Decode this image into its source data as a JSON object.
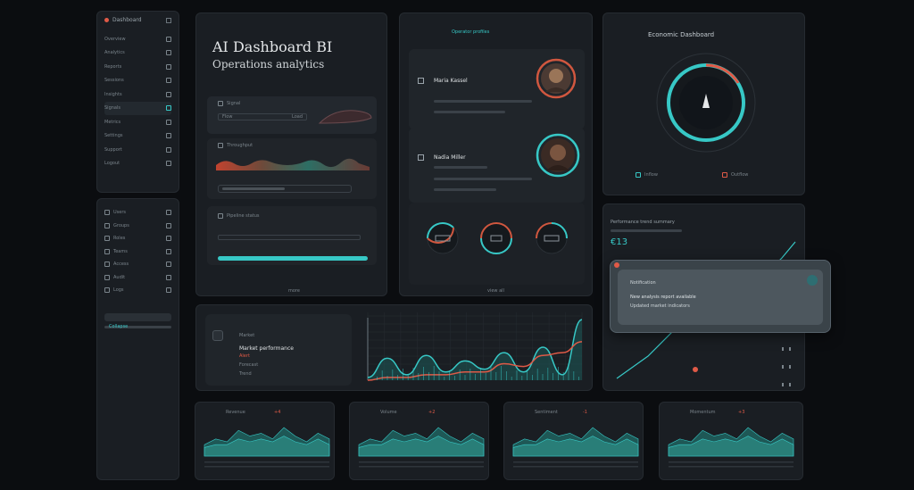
{
  "colors": {
    "bg": "#0b0d10",
    "panel": "#1a1e23",
    "teal": "#37c8c6",
    "red": "#e05a47"
  },
  "sidebar_top": {
    "title": "Dashboard",
    "items": [
      "Overview",
      "Analytics",
      "Reports",
      "Sessions",
      "Insights",
      "Signals",
      "Metrics",
      "Settings",
      "Support",
      "Logout"
    ]
  },
  "sidebar_bottom": {
    "items": [
      "Users",
      "Groups",
      "Roles",
      "Teams",
      "Access",
      "Audit",
      "Logs"
    ],
    "footer": "Collapse"
  },
  "hero": {
    "title": "AI Dashboard BI",
    "subtitle": "Operations analytics",
    "card1_label": "Signal",
    "card1_a": "Flow",
    "card1_b": "Load",
    "card2_label": "Throughput",
    "card3_label": "Pipeline status",
    "footer": "more"
  },
  "profiles": {
    "header": "Operator profiles",
    "p1_name": "Maria Kassel",
    "p2_name": "Nadia Miller",
    "footer": "view all"
  },
  "gauge_panel": {
    "title": "Economic Dashboard",
    "legend_a": "Inflow",
    "legend_b": "Outflow"
  },
  "trend_panel": {
    "header": "Performance trend summary",
    "value": "€13",
    "card_title": "Notification",
    "card_line1": "New analysis report available",
    "card_line2": "Updated market indicators"
  },
  "wave_panel": {
    "header": "Market",
    "title": "Market performance",
    "alert": "Alert",
    "line1": "Forecast",
    "line2": "Trend"
  },
  "minis": [
    {
      "title": "Revenue",
      "tag": "+4"
    },
    {
      "title": "Volume",
      "tag": "+2"
    },
    {
      "title": "Sentiment",
      "tag": "-1"
    },
    {
      "title": "Momentum",
      "tag": "+3"
    }
  ],
  "chart_data": [
    {
      "type": "area",
      "series": [
        {
          "values": [
            4,
            6,
            5,
            9,
            7,
            8,
            6,
            10,
            7,
            5,
            8,
            6
          ]
        },
        {
          "values": [
            3,
            4,
            4,
            6,
            5,
            6,
            5,
            7,
            5,
            4,
            6,
            4
          ]
        }
      ]
    },
    {
      "type": "line",
      "series": [
        {
          "values": [
            1,
            8,
            2,
            9,
            3,
            7,
            4,
            10,
            3,
            12,
            2,
            22
          ]
        },
        {
          "values": [
            0,
            1,
            1,
            2,
            2,
            3,
            3,
            6,
            5,
            9,
            10,
            14
          ]
        }
      ]
    }
  ]
}
